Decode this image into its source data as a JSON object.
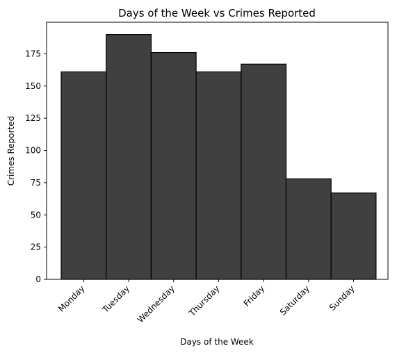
{
  "chart_data": {
    "type": "bar",
    "title": "Days of the Week vs Crimes Reported",
    "xlabel": "Days of the Week",
    "ylabel": "Crimes Reported",
    "categories": [
      "Monday",
      "Tuesday",
      "Wednesday",
      "Thursday",
      "Friday",
      "Saturday",
      "Sunday"
    ],
    "values": [
      161,
      190,
      176,
      161,
      167,
      78,
      67
    ],
    "ylim": [
      0,
      199.5
    ],
    "yticks": [
      0,
      25,
      50,
      75,
      100,
      125,
      150,
      175
    ],
    "grid": false,
    "colors": {
      "bar_fill": "#404040",
      "bar_edge": "#000000"
    }
  }
}
